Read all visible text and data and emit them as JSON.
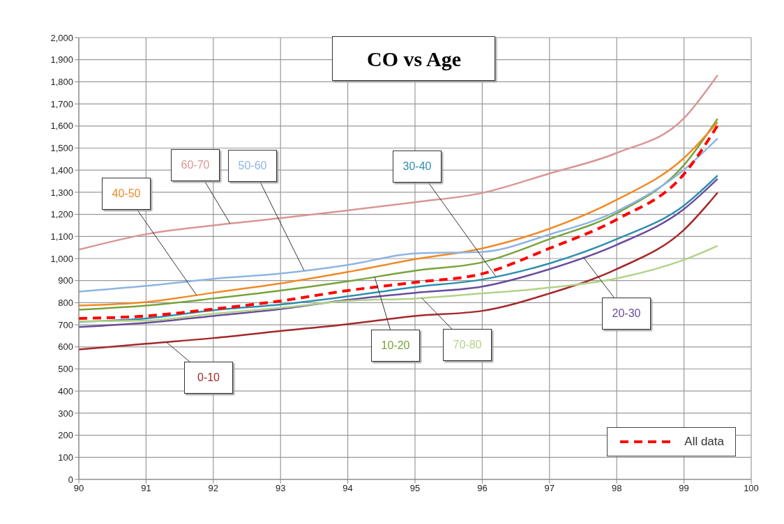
{
  "chart_data": {
    "type": "line",
    "title": "CO vs Age",
    "x": [
      90,
      91,
      92,
      93,
      94,
      95,
      96,
      97,
      98,
      99,
      99.5
    ],
    "xlim": [
      90,
      100
    ],
    "xticks": [
      90,
      91,
      92,
      93,
      94,
      95,
      96,
      97,
      98,
      99,
      100
    ],
    "ylim": [
      0,
      2000
    ],
    "yticks": [
      {
        "value": 0,
        "label": "0"
      },
      {
        "value": 100,
        "label": "100"
      },
      {
        "value": 200,
        "label": "200"
      },
      {
        "value": 300,
        "label": "300"
      },
      {
        "value": 400,
        "label": "400"
      },
      {
        "value": 500,
        "label": "500"
      },
      {
        "value": 600,
        "label": "600"
      },
      {
        "value": 700,
        "label": "700"
      },
      {
        "value": 800,
        "label": "800"
      },
      {
        "value": 900,
        "label": "900"
      },
      {
        "value": 1000,
        "label": "1,000"
      },
      {
        "value": 1100,
        "label": "1,100"
      },
      {
        "value": 1200,
        "label": "1,200"
      },
      {
        "value": 1300,
        "label": "1,300"
      },
      {
        "value": 1400,
        "label": "1,400"
      },
      {
        "value": 1500,
        "label": "1,500"
      },
      {
        "value": 1600,
        "label": "1,600"
      },
      {
        "value": 1700,
        "label": "1,700"
      },
      {
        "value": 1800,
        "label": "1,800"
      },
      {
        "value": 1900,
        "label": "1,900"
      },
      {
        "value": 2000,
        "label": "2,000"
      }
    ],
    "grid": true,
    "legend": "bottom right",
    "marker": "none",
    "series": [
      {
        "name": "0-10",
        "color": "#a4282a",
        "values": [
          588,
          614,
          640,
          672,
          703,
          740,
          763,
          842,
          952,
          1130,
          1298
        ]
      },
      {
        "name": "10-20",
        "color": "#77a33a",
        "values": [
          768,
          787,
          819,
          855,
          897,
          945,
          983,
          1088,
          1205,
          1423,
          1633
        ]
      },
      {
        "name": "20-30",
        "color": "#6a4c9c",
        "values": [
          690,
          709,
          740,
          771,
          813,
          845,
          873,
          952,
          1062,
          1224,
          1361
        ]
      },
      {
        "name": "30-40",
        "color": "#2e8fae",
        "values": [
          714,
          729,
          766,
          792,
          829,
          871,
          905,
          978,
          1088,
          1240,
          1376
        ]
      },
      {
        "name": "40-50",
        "color": "#f08a24",
        "values": [
          787,
          803,
          845,
          887,
          939,
          997,
          1046,
          1135,
          1266,
          1455,
          1617
        ]
      },
      {
        "name": "50-60",
        "color": "#8eb4e3",
        "values": [
          850,
          876,
          908,
          932,
          971,
          1023,
          1030,
          1109,
          1214,
          1402,
          1544
        ]
      },
      {
        "name": "60-70",
        "color": "#d99694",
        "values": [
          1040,
          1110,
          1150,
          1183,
          1218,
          1255,
          1297,
          1385,
          1478,
          1635,
          1830
        ]
      },
      {
        "name": "70-80",
        "color": "#b3d28a",
        "values": [
          716,
          719,
          750,
          777,
          808,
          819,
          842,
          868,
          910,
          994,
          1057
        ]
      },
      {
        "name": "All data",
        "color": "#ff0000",
        "line_style": "dashed",
        "values": [
          729,
          740,
          771,
          808,
          855,
          892,
          931,
          1046,
          1177,
          1382,
          1602
        ]
      }
    ]
  }
}
